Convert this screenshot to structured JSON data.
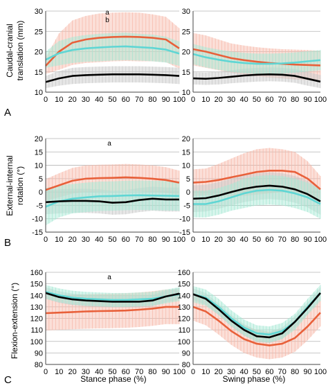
{
  "panel_letters": [
    "A",
    "B",
    "C"
  ],
  "x_axis_labels": {
    "left": "Stance phase (%)",
    "right": "Swing phase (%)"
  },
  "row_ylabels": [
    [
      "Caudal-cranial",
      "translation (mm)"
    ],
    [
      "External-internal",
      "rotation (°)"
    ],
    [
      "Flexion-extension (°)"
    ]
  ],
  "series_colors": {
    "s1": "#e8603a",
    "s2": "#5fd6d4",
    "s3": "#000000"
  },
  "band_colors": {
    "s1": "#f7b8a8",
    "s2": "#a6e8d4",
    "s3": "#c8c8c8"
  },
  "chart_data": [
    {
      "type": "line",
      "panel": "A-left",
      "x": [
        0,
        10,
        20,
        30,
        40,
        50,
        60,
        70,
        80,
        90,
        100
      ],
      "xticks": [
        0,
        10,
        20,
        30,
        40,
        50,
        60,
        70,
        80,
        90,
        100
      ],
      "ylim": [
        10,
        30
      ],
      "yticks": [
        10,
        15,
        20,
        25,
        30
      ],
      "annotations": [
        "a",
        "b"
      ],
      "series": [
        {
          "key": "s1",
          "values": [
            16.5,
            20,
            22.2,
            23,
            23.4,
            23.6,
            23.7,
            23.6,
            23.4,
            23,
            20.8
          ],
          "sd": [
            2,
            4.5,
            5.5,
            5.8,
            6,
            6,
            6,
            6,
            5.8,
            5.6,
            5
          ]
        },
        {
          "key": "s2",
          "values": [
            18,
            19.6,
            20.4,
            20.8,
            21,
            21.2,
            21.3,
            21.1,
            20.9,
            20.5,
            19.5
          ],
          "sd": [
            2,
            3,
            3.2,
            3.3,
            3.4,
            3.4,
            3.4,
            3.3,
            3.3,
            3.2,
            3
          ]
        },
        {
          "key": "s3",
          "values": [
            12.5,
            13.4,
            14,
            14.2,
            14.3,
            14.4,
            14.4,
            14.4,
            14.3,
            14.2,
            14
          ],
          "sd": [
            1.5,
            1.8,
            2,
            2,
            2,
            2,
            2,
            2,
            2,
            2,
            2
          ]
        }
      ]
    },
    {
      "type": "line",
      "panel": "A-right",
      "x": [
        0,
        10,
        20,
        30,
        40,
        50,
        60,
        70,
        80,
        90,
        100
      ],
      "xticks": [
        0,
        10,
        20,
        30,
        40,
        50,
        60,
        70,
        80,
        90,
        100
      ],
      "ylim": [
        10,
        30
      ],
      "yticks": [
        10,
        15,
        20,
        25,
        30
      ],
      "series": [
        {
          "key": "s1",
          "values": [
            20.6,
            20,
            19.2,
            18.4,
            17.9,
            17.5,
            17.2,
            17,
            16.8,
            16.7,
            16.6
          ],
          "sd": [
            4,
            4,
            3.8,
            3.6,
            3.6,
            3.6,
            3.6,
            3.6,
            3.7,
            3.7,
            3.6
          ]
        },
        {
          "key": "s2",
          "values": [
            19.4,
            18.6,
            18,
            17.5,
            17.2,
            17,
            17,
            17.1,
            17.3,
            17.6,
            17.9
          ],
          "sd": [
            2.5,
            2.5,
            2.5,
            2.5,
            2.5,
            2.5,
            2.5,
            2.5,
            2.5,
            2.5,
            2.5
          ]
        },
        {
          "key": "s3",
          "values": [
            13.4,
            13.3,
            13.5,
            13.8,
            14.1,
            14.3,
            14.4,
            14.3,
            14,
            13.3,
            12.6
          ],
          "sd": [
            1.5,
            1.5,
            1.6,
            1.6,
            1.7,
            1.7,
            1.7,
            1.7,
            1.7,
            1.7,
            1.6
          ]
        }
      ]
    },
    {
      "type": "line",
      "panel": "B-left",
      "x": [
        0,
        10,
        20,
        30,
        40,
        50,
        60,
        70,
        80,
        90,
        100
      ],
      "xticks": [
        0,
        10,
        20,
        30,
        40,
        50,
        60,
        70,
        80,
        90,
        100
      ],
      "ylim": [
        -15,
        20
      ],
      "yticks": [
        -15,
        -10,
        -5,
        0,
        5,
        10,
        15,
        20
      ],
      "annotations": [
        "a"
      ],
      "series": [
        {
          "key": "s1",
          "values": [
            0.8,
            2.5,
            4.2,
            5,
            5.2,
            5.3,
            5.5,
            5.3,
            5,
            4.5,
            3.5
          ],
          "sd": [
            4,
            4.5,
            4.8,
            5,
            5,
            5,
            5,
            5,
            5,
            4.8,
            4.5
          ]
        },
        {
          "key": "s2",
          "values": [
            -5.5,
            -3.5,
            -2.5,
            -2,
            -1.6,
            -1.5,
            -1.3,
            -1.2,
            -1.3,
            -1.4,
            -1.5
          ],
          "sd": [
            7,
            6,
            5.5,
            5.5,
            5.5,
            5.5,
            5.5,
            5.5,
            5.5,
            5.5,
            5.5
          ]
        },
        {
          "key": "s3",
          "values": [
            -3.8,
            -3.5,
            -3.3,
            -3.3,
            -3.5,
            -4,
            -3.8,
            -3,
            -2.5,
            -2.8,
            -2.8
          ],
          "sd": [
            4.5,
            4.5,
            4.5,
            4.5,
            4.5,
            4.5,
            4.5,
            4.5,
            4.5,
            4.5,
            4.5
          ]
        }
      ]
    },
    {
      "type": "line",
      "panel": "B-right",
      "x": [
        0,
        10,
        20,
        30,
        40,
        50,
        60,
        70,
        80,
        90,
        100
      ],
      "xticks": [
        0,
        10,
        20,
        30,
        40,
        50,
        60,
        70,
        80,
        90,
        100
      ],
      "ylim": [
        -15,
        20
      ],
      "yticks": [
        -15,
        -10,
        -5,
        0,
        5,
        10,
        15,
        20
      ],
      "series": [
        {
          "key": "s1",
          "values": [
            3.5,
            3.8,
            4.5,
            5.5,
            6.5,
            7.5,
            8,
            8,
            7.5,
            5,
            1
          ],
          "sd": [
            5,
            5,
            6,
            7,
            8,
            8.5,
            8.5,
            8,
            7.5,
            6.5,
            5
          ]
        },
        {
          "key": "s2",
          "values": [
            -4.5,
            -4.5,
            -3.5,
            -2,
            -0.5,
            0.5,
            0.8,
            0.5,
            -0.5,
            -2,
            -4.5
          ],
          "sd": [
            5,
            5,
            5,
            5,
            5.5,
            5.5,
            5.5,
            5.5,
            5.5,
            5.5,
            5.5
          ]
        },
        {
          "key": "s3",
          "values": [
            -2.5,
            -2.3,
            -1.3,
            0,
            1.2,
            2,
            2.4,
            2,
            1,
            -0.8,
            -3.5
          ],
          "sd": [
            5,
            5,
            5,
            5,
            5,
            5,
            5,
            5,
            5,
            5,
            5
          ]
        }
      ]
    },
    {
      "type": "line",
      "panel": "C-left",
      "x": [
        0,
        10,
        20,
        30,
        40,
        50,
        60,
        70,
        80,
        90,
        100
      ],
      "xticks": [
        0,
        10,
        20,
        30,
        40,
        50,
        60,
        70,
        80,
        90,
        100
      ],
      "ylim": [
        80,
        160
      ],
      "yticks": [
        80,
        90,
        100,
        110,
        120,
        130,
        140,
        150,
        160
      ],
      "annotations": [
        "a"
      ],
      "series": [
        {
          "key": "s1",
          "values": [
            124.5,
            125,
            125.5,
            126,
            126.3,
            126.5,
            126.8,
            127.5,
            128.5,
            130,
            130
          ],
          "sd": [
            15,
            15,
            15,
            15,
            15,
            15,
            15,
            15,
            15,
            15,
            15
          ]
        },
        {
          "key": "s2",
          "values": [
            143,
            140,
            138,
            137,
            136.5,
            136,
            136,
            136.5,
            137,
            139,
            141
          ],
          "sd": [
            6,
            6,
            6,
            6,
            6,
            6,
            6,
            6,
            6,
            6,
            6
          ]
        },
        {
          "key": "s3",
          "values": [
            142,
            138.5,
            136.5,
            135.5,
            135,
            134.5,
            134.5,
            134.5,
            135.5,
            139,
            141.5
          ],
          "sd": [
            5,
            5,
            5,
            5,
            5,
            5,
            5,
            5,
            5,
            5,
            5
          ]
        }
      ]
    },
    {
      "type": "line",
      "panel": "C-right",
      "x": [
        0,
        10,
        20,
        30,
        40,
        50,
        60,
        70,
        80,
        90,
        100
      ],
      "xticks": [
        0,
        10,
        20,
        30,
        40,
        50,
        60,
        70,
        80,
        90,
        100
      ],
      "ylim": [
        80,
        160
      ],
      "yticks": [
        80,
        90,
        100,
        110,
        120,
        130,
        140,
        150,
        160
      ],
      "series": [
        {
          "key": "s1",
          "values": [
            130,
            126,
            118,
            109,
            102,
            98,
            96.5,
            98,
            103,
            113,
            125
          ],
          "sd": [
            12,
            12,
            12,
            12,
            12,
            12,
            12,
            12,
            12,
            12,
            12
          ]
        },
        {
          "key": "s2",
          "values": [
            141,
            138,
            130,
            120,
            112,
            107,
            106,
            109,
            117,
            130,
            142
          ],
          "sd": [
            7,
            7,
            7,
            7,
            7,
            7,
            7,
            7,
            7,
            7,
            7
          ]
        },
        {
          "key": "s3",
          "values": [
            141,
            137,
            128,
            118,
            110,
            104.5,
            103.5,
            107,
            117,
            129,
            142
          ],
          "sd": [
            5,
            5,
            5,
            5,
            5,
            5,
            5,
            5,
            5,
            5,
            5
          ]
        }
      ]
    }
  ]
}
